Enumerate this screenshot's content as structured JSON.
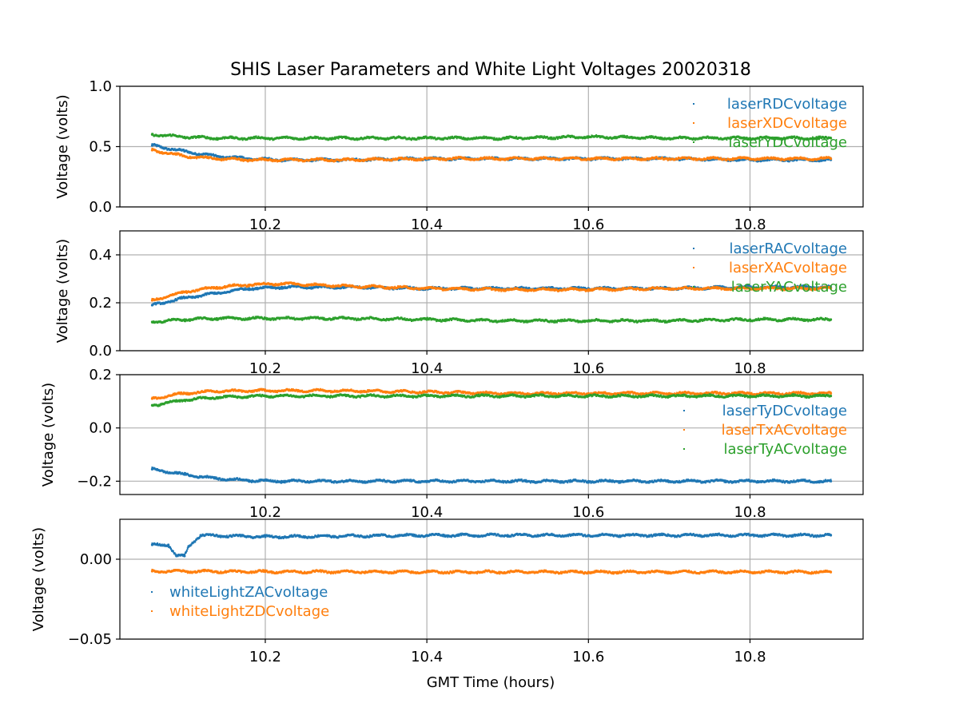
{
  "chart_data": {
    "type": "scatter",
    "title": "SHIS Laser Parameters and White Light Voltages 20020318",
    "xlabel": "GMT Time (hours)",
    "xlim": [
      10.02,
      10.94
    ],
    "x_ticks": [
      10.2,
      10.4,
      10.6,
      10.8
    ],
    "x_tick_labels": [
      "10.2",
      "10.4",
      "10.6",
      "10.8"
    ],
    "grid": true,
    "panels": [
      {
        "ylabel": "Voltage (volts)",
        "ylim": [
          0.0,
          1.0
        ],
        "y_ticks": [
          0.0,
          0.5,
          1.0
        ],
        "y_tick_labels": [
          "0.0",
          "0.5",
          "1.0"
        ],
        "legend_position": "top-right",
        "series": [
          {
            "name": "laserRDCvoltage",
            "color": "#1f77b4",
            "x": [
              10.06,
              10.1,
              10.14,
              10.18,
              10.22,
              10.3,
              10.4,
              10.5,
              10.6,
              10.7,
              10.8,
              10.9
            ],
            "y": [
              0.51,
              0.46,
              0.42,
              0.4,
              0.39,
              0.39,
              0.4,
              0.4,
              0.4,
              0.4,
              0.39,
              0.39
            ]
          },
          {
            "name": "laserXDCvoltage",
            "color": "#ff7f0e",
            "x": [
              10.06,
              10.1,
              10.14,
              10.18,
              10.22,
              10.3,
              10.4,
              10.5,
              10.6,
              10.7,
              10.8,
              10.9
            ],
            "y": [
              0.47,
              0.42,
              0.4,
              0.39,
              0.39,
              0.39,
              0.4,
              0.4,
              0.4,
              0.4,
              0.4,
              0.4
            ]
          },
          {
            "name": "laserYDCvoltage",
            "color": "#2ca02c",
            "x": [
              10.06,
              10.1,
              10.14,
              10.2,
              10.3,
              10.4,
              10.5,
              10.6,
              10.7,
              10.8,
              10.9
            ],
            "y": [
              0.6,
              0.58,
              0.57,
              0.57,
              0.57,
              0.57,
              0.57,
              0.58,
              0.57,
              0.57,
              0.57
            ]
          }
        ]
      },
      {
        "ylabel": "Voltage (volts)",
        "ylim": [
          0.0,
          0.5
        ],
        "y_ticks": [
          0.0,
          0.2,
          0.4
        ],
        "y_tick_labels": [
          "0.0",
          "0.2",
          "0.4"
        ],
        "legend_position": "top-right",
        "series": [
          {
            "name": "laserRACvoltage",
            "color": "#1f77b4",
            "x": [
              10.06,
              10.1,
              10.14,
              10.18,
              10.22,
              10.3,
              10.4,
              10.5,
              10.6,
              10.7,
              10.8,
              10.9
            ],
            "y": [
              0.19,
              0.22,
              0.24,
              0.26,
              0.265,
              0.265,
              0.26,
              0.26,
              0.26,
              0.26,
              0.265,
              0.265
            ]
          },
          {
            "name": "laserXACvoltage",
            "color": "#ff7f0e",
            "x": [
              10.06,
              10.1,
              10.14,
              10.18,
              10.22,
              10.3,
              10.4,
              10.5,
              10.6,
              10.7,
              10.8,
              10.9
            ],
            "y": [
              0.21,
              0.245,
              0.265,
              0.275,
              0.28,
              0.27,
              0.26,
              0.255,
              0.255,
              0.26,
              0.26,
              0.26
            ]
          },
          {
            "name": "laserYACvoltage",
            "color": "#2ca02c",
            "x": [
              10.06,
              10.1,
              10.14,
              10.2,
              10.3,
              10.4,
              10.5,
              10.6,
              10.7,
              10.8,
              10.9
            ],
            "y": [
              0.12,
              0.13,
              0.135,
              0.135,
              0.135,
              0.13,
              0.125,
              0.125,
              0.125,
              0.13,
              0.13
            ]
          }
        ]
      },
      {
        "ylabel": "Voltage (volts)",
        "ylim": [
          -0.25,
          0.2
        ],
        "y_ticks": [
          -0.2,
          0.0,
          0.2
        ],
        "y_tick_labels": [
          "−0.2",
          "0.0",
          "0.2"
        ],
        "legend_position": "center-right",
        "series": [
          {
            "name": "laserTyDCvoltage",
            "color": "#1f77b4",
            "x": [
              10.06,
              10.1,
              10.14,
              10.18,
              10.22,
              10.3,
              10.4,
              10.5,
              10.6,
              10.7,
              10.8,
              10.9
            ],
            "y": [
              -0.155,
              -0.175,
              -0.19,
              -0.197,
              -0.2,
              -0.2,
              -0.2,
              -0.2,
              -0.2,
              -0.2,
              -0.2,
              -0.2
            ]
          },
          {
            "name": "laserTxACvoltage",
            "color": "#ff7f0e",
            "x": [
              10.06,
              10.1,
              10.14,
              10.2,
              10.3,
              10.4,
              10.5,
              10.6,
              10.7,
              10.8,
              10.9
            ],
            "y": [
              0.11,
              0.13,
              0.138,
              0.14,
              0.14,
              0.135,
              0.13,
              0.13,
              0.13,
              0.13,
              0.13
            ]
          },
          {
            "name": "laserTyACvoltage",
            "color": "#2ca02c",
            "x": [
              10.06,
              10.1,
              10.14,
              10.2,
              10.3,
              10.4,
              10.5,
              10.6,
              10.7,
              10.8,
              10.9
            ],
            "y": [
              0.085,
              0.105,
              0.115,
              0.12,
              0.12,
              0.12,
              0.12,
              0.12,
              0.12,
              0.12,
              0.12
            ]
          }
        ]
      },
      {
        "ylabel": "Voltage (volts)",
        "ylim": [
          -0.05,
          0.025
        ],
        "y_ticks": [
          -0.05,
          0.0
        ],
        "y_tick_labels": [
          "−0.05",
          "0.00"
        ],
        "legend_position": "center-left",
        "series": [
          {
            "name": "whiteLightZACvoltage",
            "color": "#1f77b4",
            "x": [
              10.06,
              10.08,
              10.09,
              10.1,
              10.105,
              10.12,
              10.2,
              10.3,
              10.4,
              10.5,
              10.6,
              10.7,
              10.8,
              10.9
            ],
            "y": [
              0.009,
              0.009,
              0.002,
              0.002,
              0.008,
              0.015,
              0.014,
              0.0145,
              0.015,
              0.015,
              0.015,
              0.015,
              0.015,
              0.015
            ]
          },
          {
            "name": "whiteLightZDCvoltage",
            "color": "#ff7f0e",
            "x": [
              10.06,
              10.2,
              10.4,
              10.6,
              10.8,
              10.9
            ],
            "y": [
              -0.0075,
              -0.0078,
              -0.008,
              -0.008,
              -0.008,
              -0.008
            ]
          }
        ]
      }
    ]
  }
}
